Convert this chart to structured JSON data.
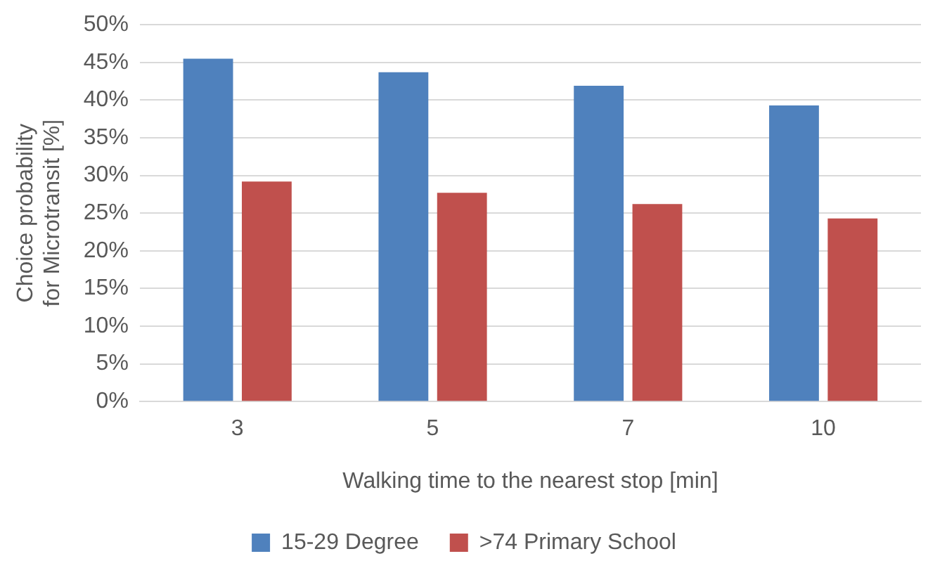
{
  "chart_data": {
    "type": "bar",
    "xlabel": "Walking time to the nearest stop [min]",
    "ylabel": "Choice probability\nfor Microtransit [%]",
    "categories": [
      "3",
      "5",
      "7",
      "10"
    ],
    "series": [
      {
        "name": "15-29 Degree",
        "color": "#4f81bd",
        "values": [
          45.5,
          43.7,
          41.9,
          39.3
        ]
      },
      {
        "name": ">74 Primary School",
        "color": "#c0504d",
        "values": [
          29.2,
          27.7,
          26.2,
          24.3
        ]
      }
    ],
    "ylim": [
      0,
      50
    ],
    "yticks": [
      {
        "value": 0,
        "label": "0%"
      },
      {
        "value": 5,
        "label": "5%"
      },
      {
        "value": 10,
        "label": "10%"
      },
      {
        "value": 15,
        "label": "15%"
      },
      {
        "value": 20,
        "label": "20%"
      },
      {
        "value": 25,
        "label": "25%"
      },
      {
        "value": 30,
        "label": "30%"
      },
      {
        "value": 35,
        "label": "35%"
      },
      {
        "value": 40,
        "label": "40%"
      },
      {
        "value": 45,
        "label": "45%"
      },
      {
        "value": 50,
        "label": "50%"
      }
    ],
    "grid": "y",
    "legend": "bottom"
  }
}
